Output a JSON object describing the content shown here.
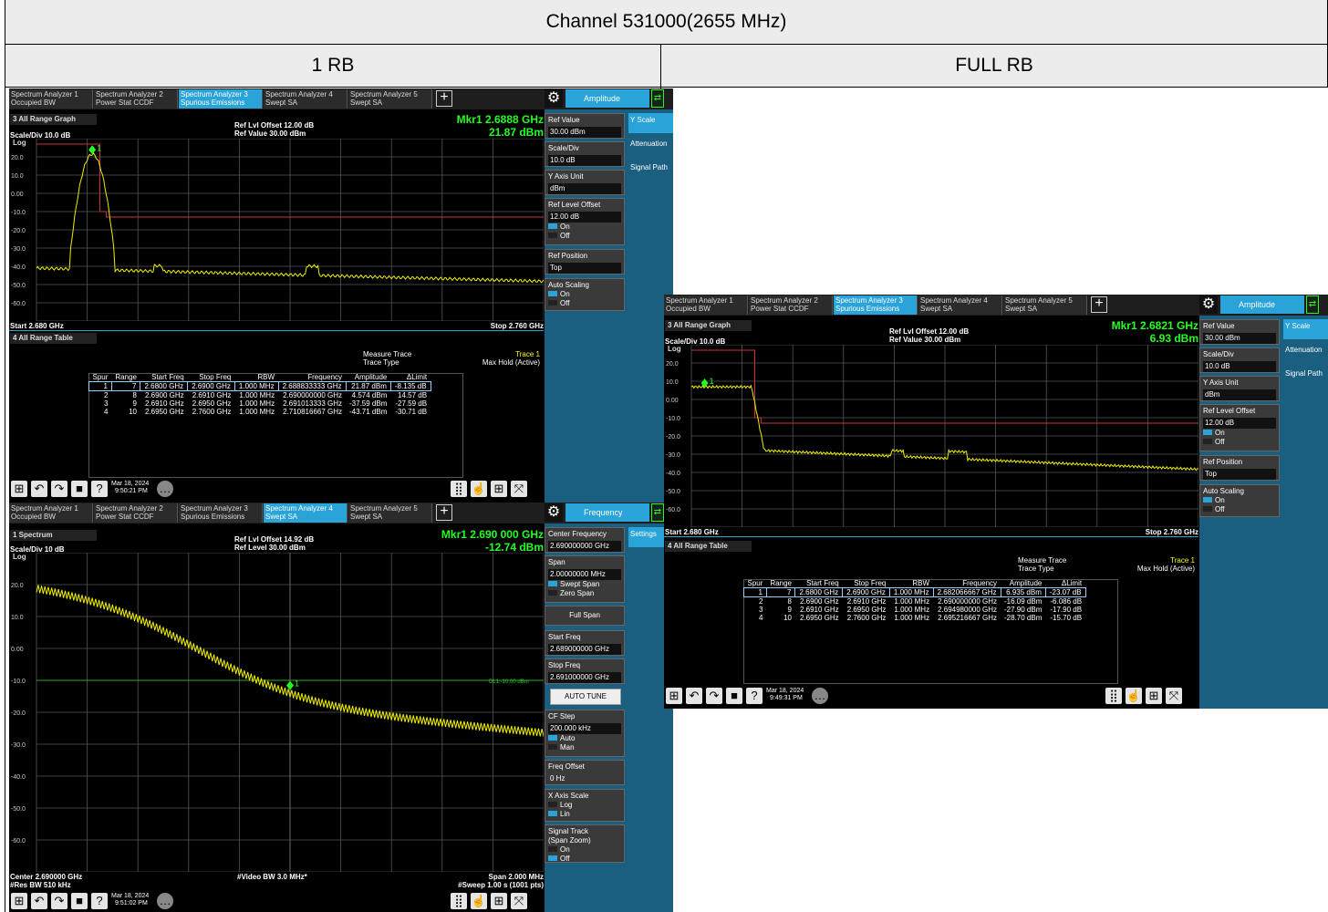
{
  "header": {
    "title": "Channel 531000(2655 MHz)",
    "col1": "1 RB",
    "col2": "FULL RB"
  },
  "tabs": [
    {
      "l1": "Spectrum Analyzer 1",
      "l2": "Occupied BW"
    },
    {
      "l1": "Spectrum Analyzer 2",
      "l2": "Power Stat CCDF"
    },
    {
      "l1": "Spectrum Analyzer 3",
      "l2": "Spurious Emissions"
    },
    {
      "l1": "Spectrum Analyzer 4",
      "l2": "Swept SA"
    },
    {
      "l1": "Spectrum Analyzer 5",
      "l2": "Swept SA"
    }
  ],
  "s1": {
    "menu": "Amplitude",
    "graph_title": "3 All Range Graph",
    "table_title": "4 All Range Table",
    "ref_offset": "Ref Lvl Offset 12.00 dB",
    "ref_value": "Ref Value 30.00 dBm",
    "scale": "Scale/Div 10.0 dB",
    "log": "Log",
    "mkr_freq": "Mkr1  2.6888 GHz",
    "mkr_amp": "21.87 dBm",
    "start": "Start 2.680 GHz",
    "stop": "Stop 2.760 GHz",
    "ylabels": [
      "20.0",
      "10.0",
      "0.00",
      "-10.0",
      "-20.0",
      "-30.0",
      "-40.0",
      "-50.0",
      "-60.0"
    ],
    "measure_trace": "Measure Trace",
    "trace1": "Trace 1",
    "trace_type": "Trace Type",
    "maxhold": "Max Hold (Active)",
    "spur_headers": [
      "Spur",
      "Range",
      "Start Freq",
      "Stop Freq",
      "RBW",
      "Frequency",
      "Amplitude",
      "ΔLimit"
    ],
    "spur_rows": [
      [
        "1",
        "7",
        "2.6800 GHz",
        "2.6900 GHz",
        "1.000 MHz",
        "2.688833333 GHz",
        "21.87 dBm",
        "-8.135 dB"
      ],
      [
        "2",
        "8",
        "2.6900 GHz",
        "2.6910 GHz",
        "1.000 MHz",
        "2.690000000 GHz",
        "4.574 dBm",
        "14.57 dB"
      ],
      [
        "3",
        "9",
        "2.6910 GHz",
        "2.6950 GHz",
        "1.000 MHz",
        "2.691013333 GHz",
        "-37.59 dBm",
        "-27.59 dB"
      ],
      [
        "4",
        "10",
        "2.6950 GHz",
        "2.7600 GHz",
        "1.000 MHz",
        "2.710816667 GHz",
        "-43.71 dBm",
        "-30.71 dB"
      ]
    ],
    "date": "Mar 18, 2024",
    "time": "9:50:21 PM",
    "side": {
      "ref_value_lbl": "Ref Value",
      "ref_value_val": "30.00 dBm",
      "scale_lbl": "Scale/Div",
      "scale_val": "10.0 dB",
      "yunit_lbl": "Y Axis Unit",
      "yunit_val": "dBm",
      "offset_lbl": "Ref Level Offset",
      "offset_val": "12.00 dB",
      "on": "On",
      "off": "Off",
      "refpos_lbl": "Ref Position",
      "refpos_val": "Top",
      "auto_lbl": "Auto Scaling"
    },
    "rtabs": [
      "Y Scale",
      "Attenuation",
      "Signal Path"
    ]
  },
  "s2": {
    "menu": "Frequency",
    "graph_title": "1 Spectrum",
    "ref_offset": "Ref Lvl Offset 14.92 dB",
    "ref_value": "Ref Level 30.00 dBm",
    "scale": "Scale/Div 10 dB",
    "log": "Log",
    "mkr_freq": "Mkr1  2.690 000 GHz",
    "mkr_amp": "-12.74 dBm",
    "dl": "DL1 -10.00 dBm",
    "center": "Center 2.690000 GHz",
    "rbw": "#Res BW 510 kHz",
    "vbw": "#Video BW 3.0 MHz*",
    "span": "Span 2.000 MHz",
    "sweep": "#Sweep 1.00 s (1001 pts)",
    "ylabels": [
      "20.0",
      "10.0",
      "0.00",
      "-10.0",
      "-20.0",
      "-30.0",
      "-40.0",
      "-50.0",
      "-60.0"
    ],
    "date": "Mar 18, 2024",
    "time": "9:51:02 PM",
    "side": {
      "cf_lbl": "Center Frequency",
      "cf_val": "2.690000000 GHz",
      "span_lbl": "Span",
      "span_val": "2.00000000 MHz",
      "swept": "Swept Span",
      "zero": "Zero Span",
      "full": "Full Span",
      "start_lbl": "Start Freq",
      "start_val": "2.689000000 GHz",
      "stop_lbl": "Stop Freq",
      "stop_val": "2.691000000 GHz",
      "autotune": "AUTO TUNE",
      "cfstep_lbl": "CF Step",
      "cfstep_val": "200.000 kHz",
      "auto": "Auto",
      "man": "Man",
      "fo_lbl": "Freq Offset",
      "fo_val": "0 Hz",
      "xaxis_lbl": "X Axis Scale",
      "log": "Log",
      "lin": "Lin",
      "track_lbl": "Signal Track",
      "track_sub": "(Span Zoom)",
      "on": "On",
      "off": "Off"
    },
    "rtabs": [
      "Settings"
    ]
  },
  "s3": {
    "menu": "Amplitude",
    "graph_title": "3 All Range Graph",
    "table_title": "4 All Range Table",
    "ref_offset": "Ref Lvl Offset 12.00 dB",
    "ref_value": "Ref Value 30.00 dBm",
    "scale": "Scale/Div 10.0 dB",
    "log": "Log",
    "mkr_freq": "Mkr1  2.6821 GHz",
    "mkr_amp": "6.93 dBm",
    "start": "Start 2.680 GHz",
    "stop": "Stop 2.760 GHz",
    "ylabels": [
      "20.0",
      "10.0",
      "0.00",
      "-10.0",
      "-20.0",
      "-30.0",
      "-40.0",
      "-50.0",
      "-60.0"
    ],
    "measure_trace": "Measure Trace",
    "trace1": "Trace 1",
    "trace_type": "Trace Type",
    "maxhold": "Max Hold (Active)",
    "spur_headers": [
      "Spur",
      "Range",
      "Start Freq",
      "Stop Freq",
      "RBW",
      "Frequency",
      "Amplitude",
      "ΔLimit"
    ],
    "spur_rows": [
      [
        "1",
        "7",
        "2.6800 GHz",
        "2.6900 GHz",
        "1.000 MHz",
        "2.682066667 GHz",
        "6.935 dBm",
        "-23.07 dB"
      ],
      [
        "2",
        "8",
        "2.6900 GHz",
        "2.6910 GHz",
        "1.000 MHz",
        "2.690000000 GHz",
        "-16.09 dBm",
        "-6.086 dB"
      ],
      [
        "3",
        "9",
        "2.6910 GHz",
        "2.6950 GHz",
        "1.000 MHz",
        "2.694980000 GHz",
        "-27.90 dBm",
        "-17.90 dB"
      ],
      [
        "4",
        "10",
        "2.6950 GHz",
        "2.7600 GHz",
        "1.000 MHz",
        "2.695216667 GHz",
        "-28.70 dBm",
        "-15.70 dB"
      ]
    ],
    "date": "Mar 18, 2024",
    "time": "9:49:31 PM",
    "side": {
      "ref_value_lbl": "Ref Value",
      "ref_value_val": "30.00 dBm",
      "scale_lbl": "Scale/Div",
      "scale_val": "10.0 dB",
      "yunit_lbl": "Y Axis Unit",
      "yunit_val": "dBm",
      "offset_lbl": "Ref Level Offset",
      "offset_val": "12.00 dB",
      "on": "On",
      "off": "Off",
      "refpos_lbl": "Ref Position",
      "refpos_val": "Top",
      "auto_lbl": "Auto Scaling"
    },
    "rtabs": [
      "Y Scale",
      "Attenuation",
      "Signal Path"
    ]
  }
}
